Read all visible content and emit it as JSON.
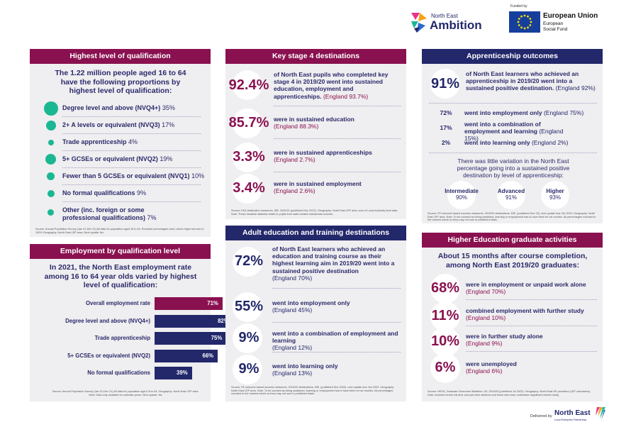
{
  "header": {
    "ambition_small": "North East",
    "ambition_big": "Ambition",
    "funded_by": "Funded by",
    "eu_title": "European Union",
    "eu_sub1": "European",
    "eu_sub2": "Social Fund"
  },
  "qualification": {
    "title": "Highest level of qualification",
    "intro": "The 1.22 million people aged 16 to 64 have the following proportions by highest level of qualification:",
    "items": [
      {
        "label": "Degree level and above (NVQ4+)",
        "value": "35%",
        "share": 35
      },
      {
        "label": "2+ A levels or equivalent (NVQ3)",
        "value": "17%",
        "share": 17
      },
      {
        "label": "Trade apprenticeship",
        "value": "4%",
        "share": 4
      },
      {
        "label": "5+ GCSEs or equivalent (NVQ2)",
        "value": "19%",
        "share": 19
      },
      {
        "label": "Fewer than 5 GCSEs or equivalent (NVQ1)",
        "value": "10%",
        "share": 10
      },
      {
        "label": "No formal qualifications",
        "value": "9%",
        "share": 9
      },
      {
        "label": "Other (inc. foreign or some professional qualifications)",
        "value": "7%",
        "share": 7
      }
    ],
    "source": "Source: Annual Population Survey (Jan 21-Dec 21) All data for population aged 16 to 64. Rounded percentages used, which might not sum to 100% Geography: North East LEP area. Next update: tbc"
  },
  "employment": {
    "title": "Employment by qualification level",
    "intro": "In 2021, the North East employment rate among 16 to 64 year olds varied by highest level of qualification:",
    "source": "Source: Annual Population Survey (Jan 21-Dec 21) All data for population aged 16 to 64. Geography: North East LEP area. Note: Data only available for calendar years. Next update: tbc"
  },
  "chart_data": {
    "type": "bar",
    "orientation": "horizontal",
    "categories": [
      "Overall employment rate",
      "Degree level and above (NVQ4+)",
      "Trade apprenticeship",
      "5+ GCSEs or equivalent (NVQ2)",
      "No formal qualifications"
    ],
    "values": [
      71,
      82,
      75,
      66,
      39
    ],
    "value_labels": [
      "71%",
      "82%",
      "75%",
      "66%",
      "39%"
    ],
    "colors": [
      "#8a1150",
      "#23286b",
      "#23286b",
      "#23286b",
      "#23286b"
    ],
    "xlim": [
      0,
      100
    ]
  },
  "ks4": {
    "title": "Key stage 4 destinations",
    "items": [
      {
        "stat": "92.4%",
        "text": "of North East pupils who completed key stage 4 in 2019/20 went into sustained education, employment and apprenticeships.",
        "eng": "(England 93.7%)"
      },
      {
        "stat": "85.7%",
        "text": "were in sustained education",
        "eng": "(England 88.3%)"
      },
      {
        "stat": "3.3%",
        "text": "were in sustained apprenticeships",
        "eng": "(England 2.7%)"
      },
      {
        "stat": "3.4%",
        "text": "were in sustained employment",
        "eng": "(England 2.6%)"
      }
    ],
    "source": "Source: KS4 destination measures, DfE, 2020/21 (published Nov 2022). Geography: North East LEP area, sum of Local Authority level data Note: These headline statistics relate to pupils from state-funded mainstream schools."
  },
  "adult": {
    "title": "Adult education and training destinations",
    "items": [
      {
        "stat": "72%",
        "text": "of North East learners who achieved an education and training course as their highest learning aim in 2019/20 went into a sustained positive destination",
        "eng": "(England 70%)"
      },
      {
        "stat": "55%",
        "text": "went into employment only",
        "eng": "(England 45%)"
      },
      {
        "stat": "9%",
        "text": "went into a combination of employment and learning",
        "eng": "(England 12%)"
      },
      {
        "stat": "9%",
        "text": "went into learning only",
        "eng": "(England 13%)"
      }
    ],
    "source": "Source: FE outcome based success measures, 2019/20 destinations, DfE, (published Nov 2022), next update due Oct 2023. Geography: North East LEP area. Note: To be counted as being sustained, learning or employment has to have been for six months. All percentages rounded to the nearest whole so they may not sum to published totals."
  },
  "apprenticeship": {
    "title": "Apprenticeship outcomes",
    "lead_stat": "91%",
    "lead_text": "of North East learners who achieved an apprenticeship in 2019/20 went into a sustained positive destination.",
    "lead_eng": "(England 92%)",
    "items": [
      {
        "stat": "72%",
        "text": "went into employment only",
        "eng": "(England 75%)"
      },
      {
        "stat": "17%",
        "text": "went into a combination of employment and learning",
        "eng": "(England 15%)"
      },
      {
        "stat": "2%",
        "text": "went into learning only",
        "eng": "(England 2%)"
      }
    ],
    "variation": "There was little variation in the North East percentage going into a sustained positive destination by level of apprenticeship:",
    "levels": [
      {
        "label": "Intermediate",
        "value": "90%"
      },
      {
        "label": "Advanced",
        "value": "91%"
      },
      {
        "label": "Higher",
        "value": "93%"
      }
    ],
    "source": "Source: FE outcome based success measures, 2019/20 destinations, DfE, (published Nov 22), next update due Oct 2023. Geography: North East LEP area. Note: To be counted as being sustained, learning or employment has to have been for six months. All percentages rounded to the nearest whole so they may not sum to published totals."
  },
  "he": {
    "title": "Higher Education graduate activities",
    "intro": "About 15 months after course completion, among North East 2019/20 graduates:",
    "items": [
      {
        "stat": "68%",
        "text": "were in employment or unpaid work alone",
        "eng": "(England 70%)"
      },
      {
        "stat": "11%",
        "text": "combined employment with further study",
        "eng": "(England 10%)"
      },
      {
        "stat": "10%",
        "text": "were in further study alone",
        "eng": "(England 9%)"
      },
      {
        "stat": "6%",
        "text": "were unemployed",
        "eng": "(England 6%)"
      }
    ],
    "source": "Source: HESA, Graduate Outcomes Statistics: UK, 2019/20 (published Jul 2022). Geography: North East HE providers (LEP calculation). Note: Includes former full-time and part-time students and those who have undertaken significant interim study."
  },
  "footer": {
    "delivered_by": "Delivered by",
    "ne_lep": "North East",
    "ne_lep_sub": "Local Enterprise Partnership"
  }
}
